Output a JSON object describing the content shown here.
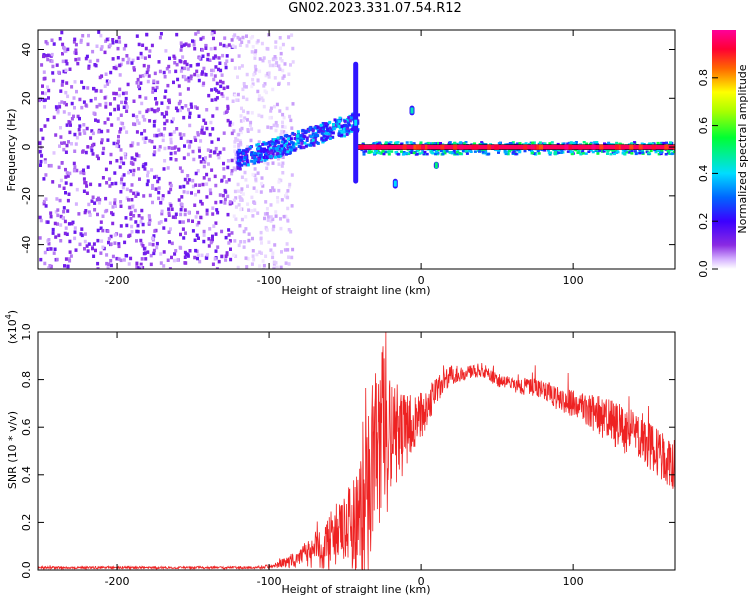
{
  "title": "GN02.2023.331.07.54.R12",
  "colors": {
    "snr_line": "#ee2222",
    "axis": "#000000"
  },
  "chart_data": [
    {
      "type": "heatmap",
      "xlabel": "Height of straight line (km)",
      "ylabel": "Frequency (Hz)",
      "xlim": [
        -252,
        167
      ],
      "ylim": [
        -50,
        48
      ],
      "x_ticks": [
        -200,
        -100,
        0,
        100
      ],
      "y_ticks": [
        -40,
        -20,
        0,
        20,
        40
      ],
      "colorbar": {
        "label": "Normalized spectral amplitude",
        "range": [
          0,
          1
        ],
        "ticks": [
          "0.0",
          "0.2",
          "0.4",
          "0.6",
          "0.8"
        ],
        "colormap": "white-purple-blue-cyan-green-yellow-red-magenta"
      },
      "features": [
        {
          "x_range": [
            -252,
            -105
          ],
          "frequency_range": [
            -50,
            48
          ],
          "amplitude": 0.05
        },
        {
          "x_range": [
            -122,
            -60
          ],
          "frequency_center": [
            -5,
            8
          ],
          "amplitude": 0.3
        },
        {
          "x_range": [
            -60,
            -42
          ],
          "frequency_center": [
            8,
            11
          ],
          "amplitude": 0.35
        },
        {
          "x_range": [
            -42,
            167
          ],
          "frequency_center": [
            0,
            0
          ],
          "amplitude": 0.95
        },
        {
          "x": -43,
          "frequency_range": [
            -15,
            35
          ],
          "amplitude": 0.4
        },
        {
          "x": -17,
          "frequency_range": [
            -17,
            -13
          ],
          "amplitude": 0.4
        },
        {
          "x": -6,
          "frequency_range": [
            13,
            17
          ],
          "amplitude": 0.45
        },
        {
          "x": 10,
          "frequency_range": [
            -9,
            -6
          ],
          "amplitude": 0.5
        }
      ]
    },
    {
      "type": "line",
      "xlabel": "Height of straight line (km)",
      "ylabel": "SNR (10 * v/v)",
      "yscale_label": "(x10",
      "yscale_exp": "4",
      "yscale_close": ")",
      "xlim": [
        -252,
        167
      ],
      "ylim": [
        0,
        1.0
      ],
      "x_ticks": [
        -200,
        -100,
        0,
        100
      ],
      "y_ticks": [
        "0.0",
        "0.2",
        "0.4",
        "0.6",
        "0.8",
        "1.0"
      ],
      "series": [
        {
          "x": [
            -252,
            -200,
            -150,
            -110,
            -100,
            -90,
            -80,
            -70,
            -60,
            -55,
            -50,
            -45,
            -40,
            -35,
            -30,
            -25,
            -20,
            -15,
            -10,
            -5,
            0,
            10,
            20,
            30,
            40,
            50,
            60,
            70,
            80,
            90,
            100,
            110,
            120,
            130,
            140,
            150,
            160,
            167
          ],
          "y": [
            0.01,
            0.01,
            0.01,
            0.01,
            0.015,
            0.03,
            0.05,
            0.08,
            0.12,
            0.15,
            0.16,
            0.2,
            0.22,
            0.3,
            0.45,
            0.55,
            0.6,
            0.55,
            0.58,
            0.62,
            0.65,
            0.75,
            0.82,
            0.83,
            0.84,
            0.8,
            0.78,
            0.77,
            0.76,
            0.72,
            0.7,
            0.67,
            0.64,
            0.6,
            0.57,
            0.52,
            0.47,
            0.42
          ],
          "noise": [
            0.005,
            0.005,
            0.005,
            0.005,
            0.008,
            0.02,
            0.04,
            0.08,
            0.12,
            0.14,
            0.15,
            0.2,
            0.25,
            0.35,
            0.42,
            0.4,
            0.3,
            0.22,
            0.15,
            0.12,
            0.1,
            0.06,
            0.04,
            0.03,
            0.03,
            0.03,
            0.03,
            0.04,
            0.04,
            0.05,
            0.06,
            0.07,
            0.09,
            0.1,
            0.1,
            0.1,
            0.1,
            0.1
          ]
        }
      ]
    }
  ]
}
